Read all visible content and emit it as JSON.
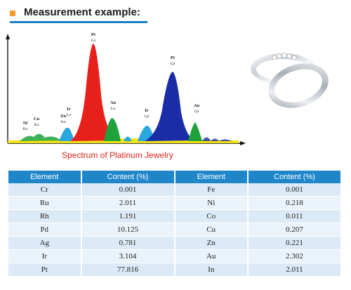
{
  "header": {
    "title": "Measurement example:"
  },
  "spectrum": {
    "caption": "Spectrum of  Platinum Jewelry",
    "colors": {
      "axis": "#111111",
      "baseline_yellow": "#f2e200",
      "red_peak": "#e8201c",
      "blue_peak": "#1b2da6",
      "green": "#1fa23c",
      "cyan": "#2ba7e0"
    },
    "peak_labels": [
      {
        "element": "Ni",
        "line": "Kα"
      },
      {
        "element": "Cu",
        "line": "Kα"
      },
      {
        "element": "Zn",
        "line": "Kα"
      },
      {
        "element": "Ir",
        "line": "Lα"
      },
      {
        "element": "Pt",
        "line": "Lα"
      },
      {
        "element": "Au",
        "line": "Lα"
      },
      {
        "element": "Ir",
        "line": "Lβ"
      },
      {
        "element": "Pt",
        "line": "Lβ"
      },
      {
        "element": "Au",
        "line": "Lβ"
      }
    ]
  },
  "ring_image": {
    "icon": "platinum-rings-photo"
  },
  "table": {
    "headers": [
      "Element",
      "Content (%)",
      "Element",
      "Content (%)"
    ],
    "rows": [
      [
        "Cr",
        "0.001",
        "Fe",
        "0.001"
      ],
      [
        "Ru",
        "2.011",
        "Ni",
        "0.218"
      ],
      [
        "Rh",
        "1.191",
        "Co",
        "0.011"
      ],
      [
        "Pd",
        "10.125",
        "Cu",
        "0.207"
      ],
      [
        "Ag",
        "0.781",
        "Zn",
        "0.221"
      ],
      [
        "Ir",
        "3.104",
        "Au",
        "2.302"
      ],
      [
        "Pt",
        "77.816",
        "In",
        "2.011"
      ]
    ],
    "colors": {
      "header_bg": "#1f86c9",
      "row_bg": "#dbeaf6"
    }
  }
}
